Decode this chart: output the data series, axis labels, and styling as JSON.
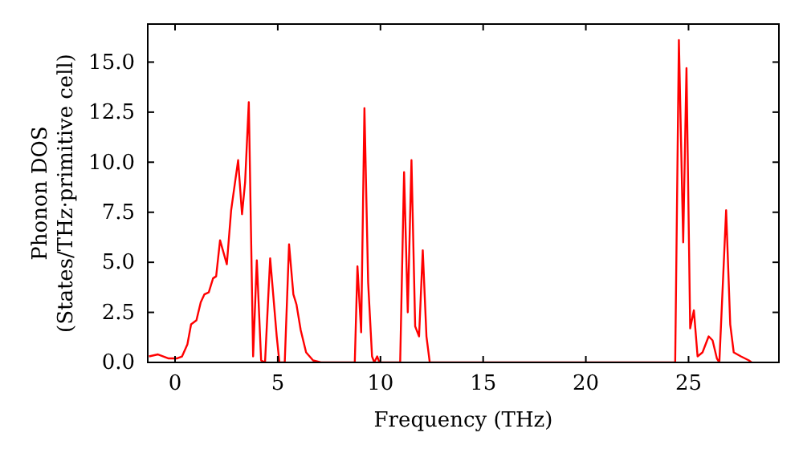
{
  "chart_data": {
    "type": "line",
    "xlabel": "Frequency (THz)",
    "ylabel": "Phonon DOS\n(States/THz·primitive cell)",
    "xlim": [
      -1.33,
      29.4
    ],
    "xticks": [
      0,
      5,
      10,
      15,
      20,
      25
    ],
    "ylim": [
      0,
      16.9
    ],
    "yticks": [
      {
        "value": 0,
        "label": "0.0"
      },
      {
        "value": 2.5,
        "label": "2.5"
      },
      {
        "value": 5,
        "label": "5.0"
      },
      {
        "value": 7.5,
        "label": "7.5"
      },
      {
        "value": 10,
        "label": "10.0"
      },
      {
        "value": 12.5,
        "label": "12.5"
      },
      {
        "value": 15,
        "label": "15.0"
      }
    ],
    "series": [
      {
        "color": "#ff0000",
        "x": [
          -1.27,
          -0.83,
          -0.31,
          0.08,
          0.34,
          0.6,
          0.78,
          1.04,
          1.25,
          1.43,
          1.64,
          1.85,
          2.0,
          2.19,
          2.52,
          2.73,
          3.07,
          3.26,
          3.41,
          3.59,
          3.8,
          3.98,
          4.19,
          4.38,
          4.63,
          4.95,
          5.08,
          5.34,
          5.55,
          5.76,
          5.91,
          6.12,
          6.38,
          6.72,
          7.1,
          8.75,
          8.88,
          9.06,
          9.22,
          9.4,
          9.59,
          9.7,
          9.84,
          9.95,
          10.96,
          11.15,
          11.33,
          11.51,
          11.69,
          11.88,
          12.06,
          12.24,
          12.4,
          24.35,
          24.53,
          24.74,
          24.9,
          25.08,
          25.26,
          25.44,
          25.68,
          25.98,
          26.17,
          26.38,
          26.5,
          26.83,
          27.03,
          27.2,
          27.55,
          27.94,
          28.07
        ],
        "values": [
          0.3,
          0.4,
          0.2,
          0.2,
          0.3,
          0.9,
          1.9,
          2.1,
          3.0,
          3.4,
          3.5,
          4.2,
          4.3,
          6.1,
          4.9,
          7.6,
          10.1,
          7.4,
          9.0,
          13.0,
          0.3,
          5.1,
          0.1,
          0,
          5.2,
          1.3,
          0,
          0,
          5.9,
          3.4,
          2.9,
          1.6,
          0.5,
          0.1,
          0,
          0,
          4.8,
          1.5,
          12.7,
          4.0,
          0.3,
          0,
          0.3,
          0,
          0,
          9.5,
          2.5,
          10.1,
          1.8,
          1.3,
          5.6,
          1.3,
          0,
          0,
          16.1,
          6.0,
          14.7,
          1.7,
          2.6,
          0.3,
          0.5,
          1.3,
          1.1,
          0.2,
          0,
          7.6,
          1.9,
          0.5,
          0.3,
          0.1,
          0
        ]
      }
    ]
  }
}
